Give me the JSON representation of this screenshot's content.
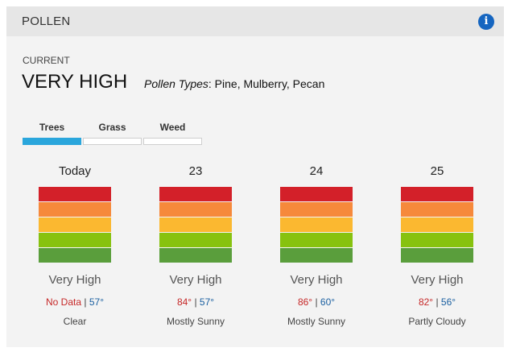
{
  "header": {
    "title": "POLLEN",
    "info_icon": "info-icon"
  },
  "current": {
    "label": "CURRENT",
    "level": "VERY HIGH",
    "types_label": "Pollen Types",
    "types_value": ": Pine, Mulberry, Pecan"
  },
  "tabs": [
    {
      "label": "Trees",
      "active": true
    },
    {
      "label": "Grass",
      "active": false
    },
    {
      "label": "Weed",
      "active": false
    }
  ],
  "scale_colors": [
    "#d32029",
    "#f6893b",
    "#fbb830",
    "#87c20f",
    "#5a9e3c"
  ],
  "separator": "|",
  "forecast": [
    {
      "day": "Today",
      "level": "Very High",
      "high": "No Data",
      "low": "57°",
      "condition": "Clear"
    },
    {
      "day": "23",
      "level": "Very High",
      "high": "84°",
      "low": "57°",
      "condition": "Mostly Sunny"
    },
    {
      "day": "24",
      "level": "Very High",
      "high": "86°",
      "low": "60°",
      "condition": "Mostly Sunny"
    },
    {
      "day": "25",
      "level": "Very High",
      "high": "82°",
      "low": "56°",
      "condition": "Partly Cloudy"
    }
  ]
}
